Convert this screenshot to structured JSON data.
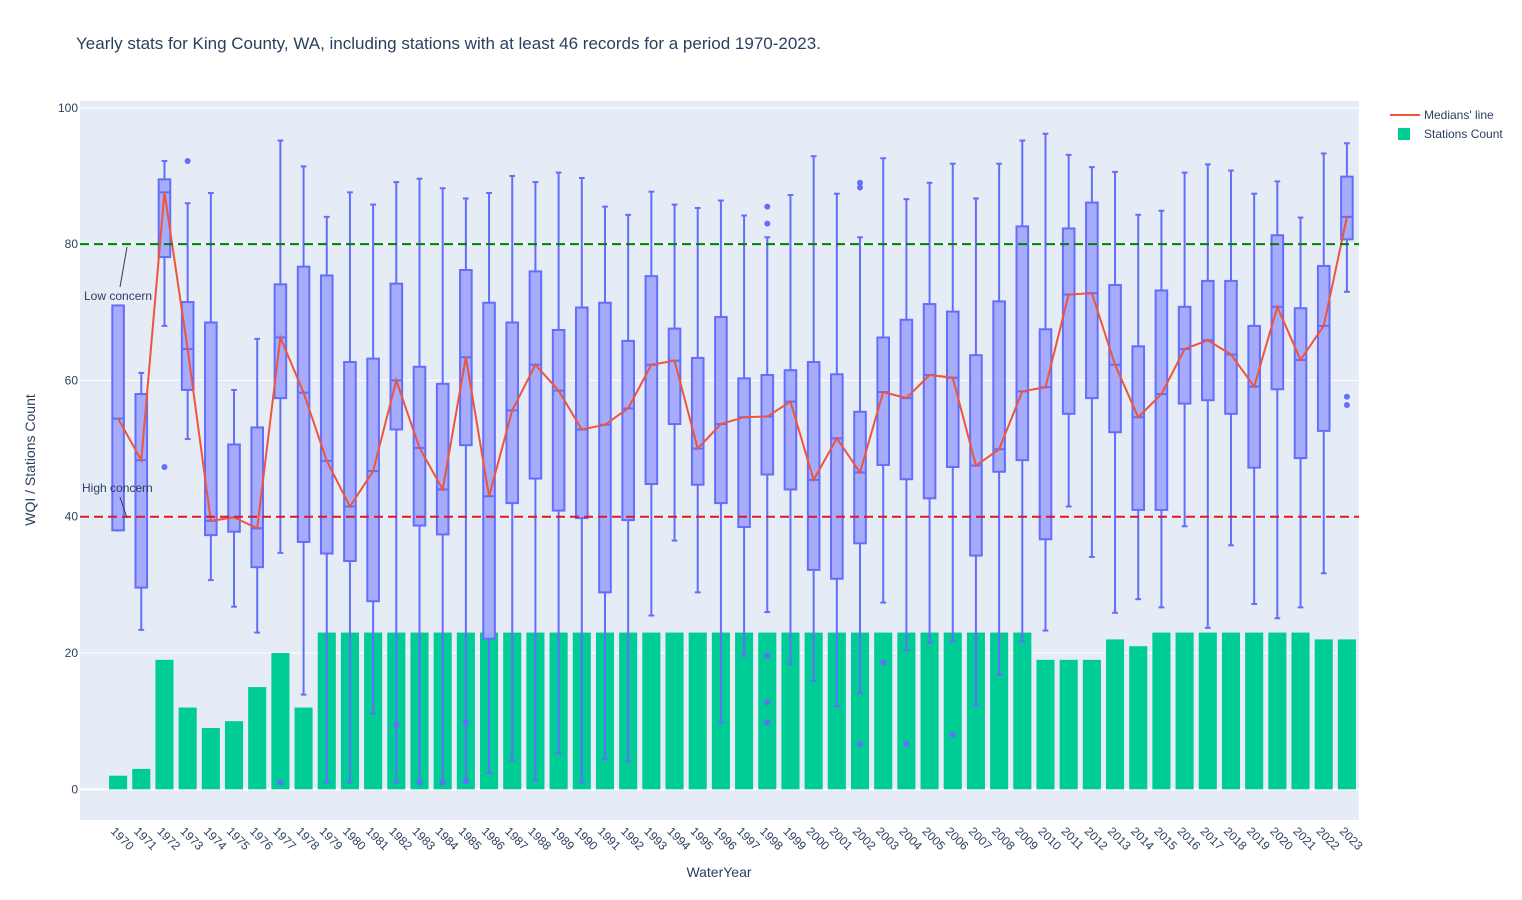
{
  "title": "Yearly stats for King County, WA, including stations with at least 46 records for a period 1970-2023.",
  "legend": {
    "median_label": "Medians' line",
    "count_label": "Stations Count"
  },
  "colors": {
    "box": "#636efa",
    "box_fill": "#a3a8fb",
    "median_line": "#ef553b",
    "count_bar": "#00cc96",
    "plot_bg": "#e5ecf6",
    "low_concern": "#008000",
    "high_concern": "#e1181d"
  },
  "chart_data": {
    "type": "box",
    "xlabel": "WaterYear",
    "ylabel": "WQI / Stations Count",
    "ylim": [
      -4.5,
      101
    ],
    "yticks": [
      0,
      20,
      40,
      60,
      80,
      100
    ],
    "grid": true,
    "legend_position": "top-right",
    "reference_lines": [
      {
        "y": 80,
        "label": "Low concern",
        "style": "dash",
        "color": "green"
      },
      {
        "y": 40,
        "label": "High concern",
        "style": "dash",
        "color": "red"
      }
    ],
    "years": [
      "1970",
      "1971",
      "1972",
      "1973",
      "1974",
      "1975",
      "1976",
      "1977",
      "1978",
      "1979",
      "1980",
      "1981",
      "1982",
      "1983",
      "1984",
      "1985",
      "1986",
      "1987",
      "1988",
      "1989",
      "1990",
      "1991",
      "1992",
      "1993",
      "1994",
      "1995",
      "1996",
      "1997",
      "1998",
      "1999",
      "2000",
      "2001",
      "2002",
      "2003",
      "2004",
      "2005",
      "2006",
      "2007",
      "2008",
      "2009",
      "2010",
      "2011",
      "2012",
      "2013",
      "2014",
      "2015",
      "2016",
      "2017",
      "2018",
      "2019",
      "2020",
      "2021",
      "2022",
      "2023"
    ],
    "medians": [
      54.4,
      48.3,
      87.6,
      64.6,
      39.4,
      39.9,
      38.3,
      66.3,
      58.2,
      48.2,
      41.5,
      46.7,
      60.0,
      50.1,
      44.0,
      63.4,
      43.0,
      55.6,
      62.3,
      58.5,
      52.8,
      53.5,
      55.9,
      62.3,
      62.9,
      50.0,
      53.6,
      54.6,
      54.7,
      56.9,
      45.4,
      51.5,
      46.5,
      58.3,
      57.4,
      60.8,
      60.4,
      47.5,
      49.9,
      58.4,
      59.0,
      72.6,
      72.8,
      62.3,
      54.6,
      58.0,
      64.6,
      65.9,
      63.8,
      59.1,
      70.8,
      63.0,
      68.0,
      84.0
    ],
    "q1": [
      38.0,
      29.6,
      78.1,
      58.6,
      37.3,
      37.8,
      32.6,
      57.4,
      36.3,
      34.6,
      33.5,
      27.6,
      52.8,
      38.7,
      37.4,
      50.5,
      22.1,
      42.0,
      45.6,
      40.9,
      39.8,
      28.9,
      39.5,
      44.8,
      53.6,
      44.7,
      42.0,
      38.5,
      46.2,
      44.0,
      32.2,
      30.9,
      36.1,
      47.6,
      45.5,
      42.7,
      47.3,
      34.3,
      46.6,
      48.3,
      36.7,
      55.1,
      57.4,
      52.4,
      41.0,
      41.0,
      56.6,
      57.1,
      55.1,
      47.2,
      58.7,
      48.6,
      52.6,
      80.7
    ],
    "q3": [
      71.0,
      58.0,
      89.5,
      71.5,
      68.5,
      50.6,
      53.1,
      74.1,
      76.7,
      75.4,
      62.7,
      63.2,
      74.2,
      62.0,
      59.5,
      76.2,
      71.4,
      68.5,
      76.0,
      67.4,
      70.7,
      71.4,
      65.8,
      75.3,
      67.6,
      63.3,
      69.3,
      60.3,
      60.8,
      61.5,
      62.7,
      60.9,
      55.4,
      66.3,
      68.9,
      71.2,
      70.1,
      63.7,
      71.6,
      82.6,
      67.5,
      82.3,
      86.1,
      74.0,
      65.0,
      73.2,
      70.8,
      74.6,
      74.6,
      68.0,
      81.3,
      70.6,
      76.8,
      89.9
    ],
    "whisker_low": [
      38.0,
      23.4,
      68.0,
      51.4,
      30.7,
      26.8,
      23.0,
      34.7,
      13.9,
      1.0,
      1.0,
      11.1,
      1.0,
      1.0,
      1.0,
      1.0,
      2.4,
      4.3,
      1.3,
      5.3,
      1.0,
      4.4,
      4.1,
      25.5,
      36.5,
      28.9,
      9.8,
      19.6,
      26.0,
      18.4,
      15.9,
      12.2,
      14.1,
      27.4,
      20.4,
      21.5,
      21.7,
      12.3,
      16.8,
      21.7,
      23.3,
      41.5,
      34.1,
      25.9,
      27.9,
      26.7,
      38.6,
      23.7,
      35.8,
      27.2,
      25.1,
      26.7,
      31.7,
      73.0
    ],
    "whisker_high": [
      71.0,
      61.1,
      92.2,
      86.0,
      87.5,
      58.6,
      66.1,
      95.2,
      91.4,
      84.0,
      87.6,
      85.8,
      89.1,
      89.6,
      88.2,
      86.7,
      87.5,
      90.0,
      89.1,
      90.5,
      89.7,
      85.5,
      84.3,
      87.7,
      85.8,
      85.3,
      86.4,
      84.2,
      81.0,
      87.2,
      92.9,
      87.4,
      81.0,
      92.6,
      86.6,
      89.0,
      91.8,
      86.7,
      91.8,
      95.2,
      96.2,
      93.1,
      91.3,
      90.6,
      84.3,
      84.9,
      90.5,
      91.7,
      90.8,
      87.4,
      89.2,
      83.9,
      93.3,
      94.8
    ],
    "outliers": [
      [],
      [],
      [
        47.3
      ],
      [
        92.2
      ],
      [],
      [],
      [],
      [
        1.0
      ],
      [],
      [],
      [],
      [],
      [
        9.5
      ],
      [
        1.0
      ],
      [
        1.0
      ],
      [
        1.2,
        9.8
      ],
      [],
      [],
      [],
      [],
      [],
      [],
      [],
      [],
      [],
      [],
      [],
      [],
      [
        85.5,
        83.0,
        19.6,
        12.8,
        9.8
      ],
      [],
      [],
      [],
      [
        89.0,
        88.3,
        6.6
      ],
      [
        18.6
      ],
      [
        6.7
      ],
      [],
      [
        8.0
      ],
      [],
      [],
      [],
      [],
      [],
      [],
      [],
      [],
      [],
      [],
      [],
      [],
      [],
      [],
      [],
      [],
      [
        57.6,
        56.4
      ]
    ],
    "stations_count": [
      2,
      3,
      19,
      12,
      9,
      10,
      15,
      20,
      12,
      23,
      23,
      23,
      23,
      23,
      23,
      23,
      23,
      23,
      23,
      23,
      23,
      23,
      23,
      23,
      23,
      23,
      23,
      23,
      23,
      23,
      23,
      23,
      23,
      23,
      23,
      23,
      23,
      23,
      23,
      23,
      19,
      19,
      19,
      22,
      21,
      23,
      23,
      23,
      23,
      23,
      23,
      23,
      22,
      22
    ]
  }
}
